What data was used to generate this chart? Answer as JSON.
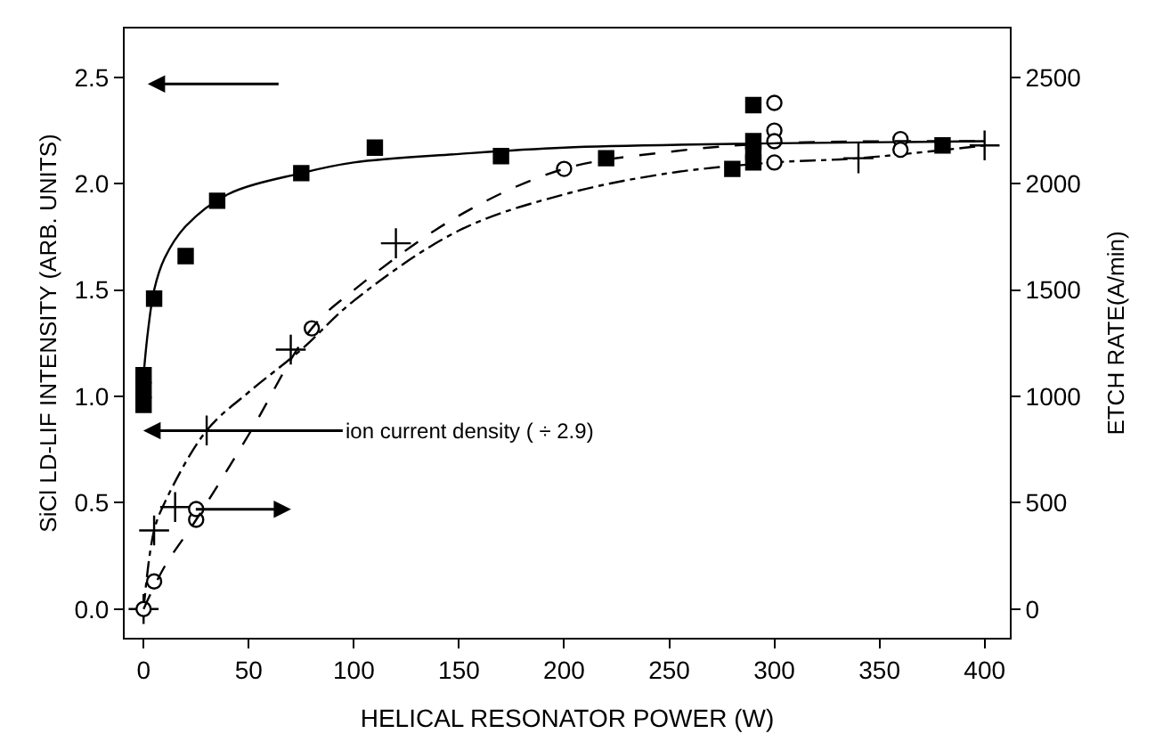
{
  "chart_data": {
    "type": "scatter",
    "xlabel": "HELICAL RESONATOR POWER (W)",
    "ylabel": "SiCl LD-LIF INTENSITY (ARB. UNITS)",
    "y2label": "ETCH RATE(A/min)",
    "xlim": [
      -9,
      412
    ],
    "xticks": [
      0,
      50,
      100,
      150,
      200,
      250,
      300,
      350,
      400
    ],
    "ylim": [
      -0.135,
      2.73
    ],
    "yticks": [
      {
        "value": 0,
        "label": "0.0"
      },
      0.5,
      {
        "value": 1,
        "label": "1.0"
      },
      1.5,
      {
        "value": 2,
        "label": "2.0"
      },
      2.5
    ],
    "y2lim": [
      -135,
      2730
    ],
    "y2ticks": [
      0,
      500,
      1000,
      1500,
      2000,
      2500
    ],
    "series": [
      {
        "type": "scatter",
        "marker": "square",
        "color": "#000000",
        "x": [
          0,
          0,
          0,
          5,
          20,
          35,
          75,
          110,
          170,
          220,
          280,
          290,
          290,
          290,
          290,
          380
        ],
        "values": [
          0.96,
          1.03,
          1.1,
          1.46,
          1.66,
          1.92,
          2.05,
          2.17,
          2.13,
          2.12,
          2.07,
          2.37,
          2.2,
          2.15,
          2.1,
          2.18
        ]
      },
      {
        "type": "scatter",
        "marker": "cross",
        "color": "#000000",
        "x": [
          0,
          5,
          15,
          30,
          70,
          120,
          340,
          400
        ],
        "values": [
          0,
          0.37,
          0.48,
          0.84,
          1.22,
          1.72,
          2.12,
          2.18
        ]
      },
      {
        "type": "line",
        "marker": "none",
        "line_style": "solid",
        "color": "#000000",
        "x": [
          0,
          2,
          5,
          10,
          20,
          40,
          75,
          100,
          150,
          200,
          300,
          400
        ],
        "values": [
          1.1,
          1.3,
          1.5,
          1.65,
          1.8,
          1.95,
          2.05,
          2.1,
          2.14,
          2.17,
          2.19,
          2.2
        ]
      },
      {
        "type": "line",
        "marker": "none",
        "line_style": "dashdot",
        "color": "#000000",
        "x": [
          0,
          5,
          10,
          30,
          50,
          75,
          100,
          150,
          200,
          250,
          300,
          340,
          400
        ],
        "values": [
          0,
          0.37,
          0.5,
          0.84,
          1.02,
          1.22,
          1.45,
          1.78,
          1.95,
          2.05,
          2.1,
          2.12,
          2.18
        ]
      },
      {
        "type": "scatter",
        "marker": "circle",
        "color": "#000000",
        "axis": "y2",
        "x": [
          0,
          5,
          25,
          25,
          80,
          200,
          300,
          300,
          300,
          300,
          360,
          360
        ],
        "values": [
          0,
          130,
          420,
          470,
          1320,
          2070,
          2380,
          2250,
          2200,
          2100,
          2210,
          2160
        ]
      },
      {
        "type": "line",
        "marker": "none",
        "line_style": "dashed",
        "color": "#000000",
        "axis": "y2",
        "x": [
          0,
          10,
          25,
          50,
          80,
          100,
          150,
          200,
          250,
          300,
          400
        ],
        "values": [
          0,
          200,
          420,
          820,
          1320,
          1500,
          1850,
          2070,
          2150,
          2190,
          2200
        ]
      }
    ],
    "annotations": [
      "ion current density ( ÷ 2.9)"
    ]
  }
}
